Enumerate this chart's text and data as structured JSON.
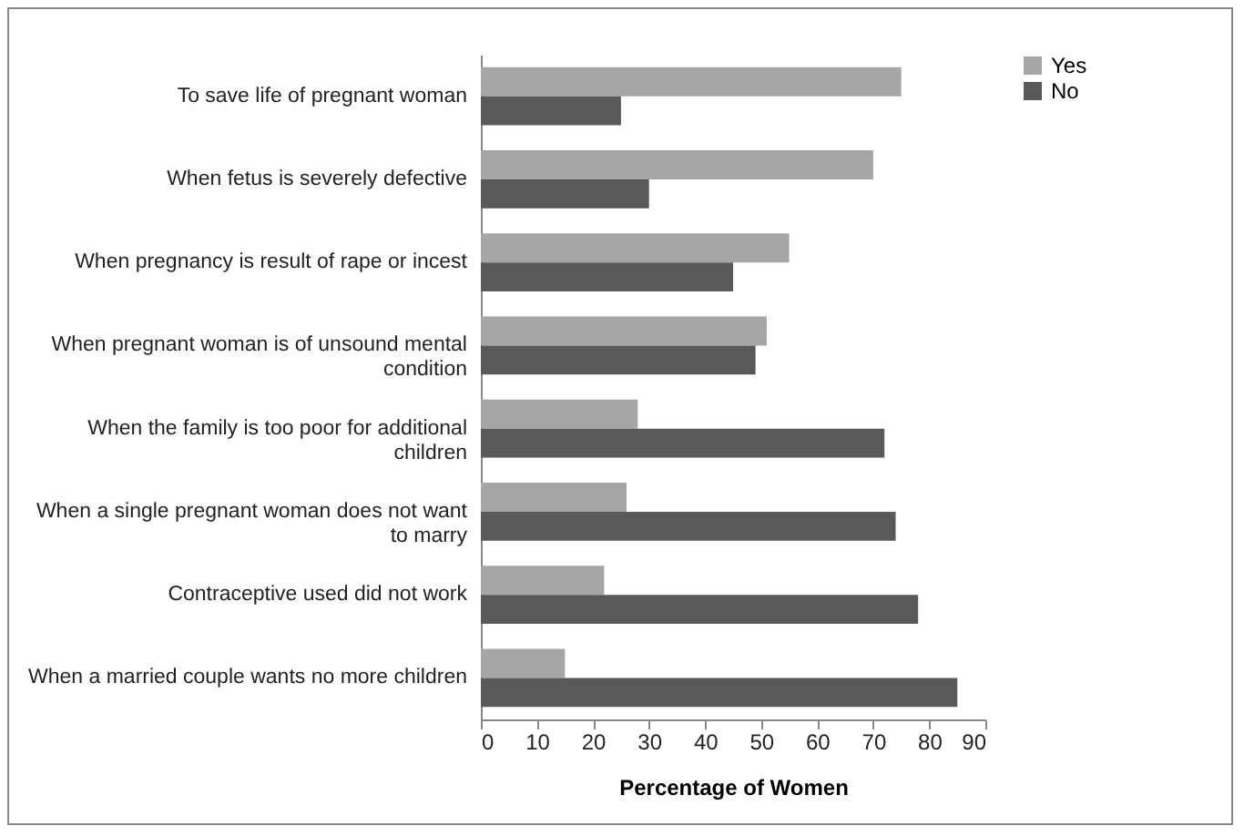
{
  "chart_data": {
    "type": "bar",
    "orientation": "horizontal",
    "xlabel": "Percentage of Women",
    "categories": [
      "To save life of pregnant woman",
      "When fetus is severely defective",
      "When pregnancy is result of rape or incest",
      "When pregnant woman is of unsound mental condition",
      "When the family is too poor for additional children",
      "When a single pregnant woman does not want to marry",
      "Contraceptive used did not work",
      "When a married couple wants no more children"
    ],
    "series": [
      {
        "name": "Yes",
        "color": "#a6a6a6",
        "values": [
          75,
          70,
          55,
          51,
          28,
          26,
          22,
          15
        ]
      },
      {
        "name": "No",
        "color": "#595959",
        "values": [
          25,
          30,
          45,
          49,
          72,
          74,
          78,
          85
        ]
      }
    ],
    "xlim": [
      0,
      90
    ],
    "xticks": [
      0,
      10,
      20,
      30,
      40,
      50,
      60,
      70,
      80,
      90
    ],
    "grid": false,
    "legend": "right"
  }
}
